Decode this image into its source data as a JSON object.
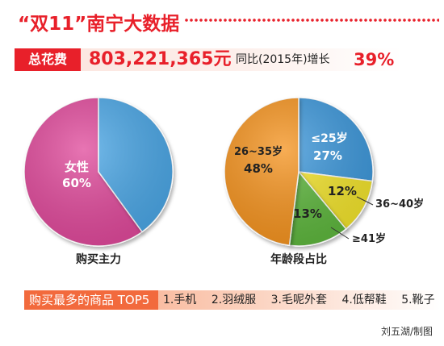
{
  "header": {
    "title": "“双11”南宁大数据"
  },
  "total": {
    "label": "总花费",
    "value": "803,221,365元",
    "yoy_text": "同比(2015年)增长",
    "yoy_pct": "39%"
  },
  "chart_data": [
    {
      "type": "pie",
      "title": "购买主力",
      "slices": [
        {
          "label": "女性",
          "value": 60,
          "display": "60%",
          "color": "#e0479a"
        },
        {
          "label": "",
          "value": 40,
          "display": "",
          "color": "#4aa6e6"
        }
      ]
    },
    {
      "type": "pie",
      "title": "年龄段占比",
      "slices": [
        {
          "label": "≤25岁",
          "value": 27,
          "display": "27%",
          "color": "#3b97db"
        },
        {
          "label": "36~40岁",
          "value": 12,
          "display": "12%",
          "color": "#f3e42c"
        },
        {
          "label": "≥41岁",
          "value": 13,
          "display": "13%",
          "color": "#5cb63a"
        },
        {
          "label": "26~35岁",
          "value": 48,
          "display": "48%",
          "color": "#f5921e"
        }
      ]
    }
  ],
  "top5": {
    "label": "购买最多的商品 TOP5",
    "items": [
      "1.手机",
      "2.羽绒服",
      "3.毛呢外套",
      "4.低帮鞋",
      "5.靴子"
    ]
  },
  "credit": "刘五湖/制图"
}
